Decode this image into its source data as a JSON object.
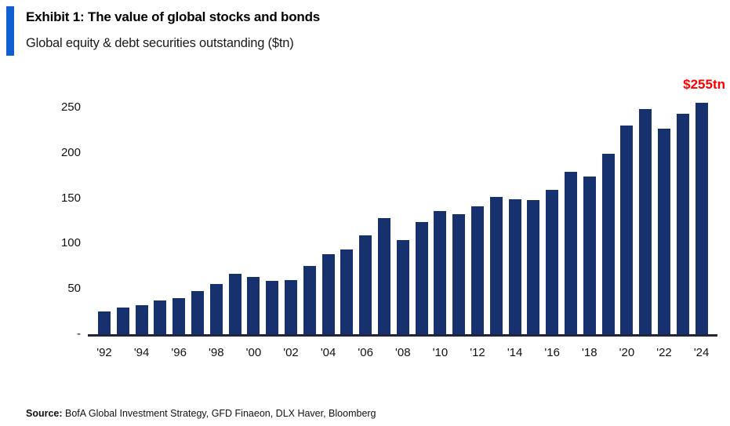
{
  "chart_data": {
    "type": "bar",
    "title": "Exhibit 1: The value of global stocks and bonds",
    "subtitle": "Global equity & debt securities outstanding ($tn)",
    "categories": [
      1992,
      1993,
      1994,
      1995,
      1996,
      1997,
      1998,
      1999,
      2000,
      2001,
      2002,
      2003,
      2004,
      2005,
      2006,
      2007,
      2008,
      2009,
      2010,
      2011,
      2012,
      2013,
      2014,
      2015,
      2016,
      2017,
      2018,
      2019,
      2020,
      2021,
      2022,
      2023,
      2024
    ],
    "values": [
      25,
      29,
      32,
      37,
      40,
      48,
      55,
      67,
      63,
      59,
      60,
      75,
      88,
      93,
      109,
      128,
      104,
      124,
      136,
      132,
      141,
      151,
      149,
      148,
      159,
      179,
      174,
      199,
      230,
      248,
      227,
      243,
      255
    ],
    "y_ticks": [
      {
        "value": 250,
        "label": "250"
      },
      {
        "value": 200,
        "label": "200"
      },
      {
        "value": 150,
        "label": "150"
      },
      {
        "value": 100,
        "label": "100"
      },
      {
        "value": 50,
        "label": "50"
      },
      {
        "value": 0,
        "label": "-"
      }
    ],
    "x_tick_labels": [
      "'92",
      "'94",
      "'96",
      "'98",
      "'00",
      "'02",
      "'04",
      "'06",
      "'08",
      "'10",
      "'12",
      "'14",
      "'16",
      "'18",
      "'20",
      "'22",
      "'24"
    ],
    "ylim": [
      0,
      270
    ],
    "grid": false,
    "legend": null,
    "xlabel": "",
    "ylabel": "",
    "annotation": {
      "text": "$255tn",
      "color": "#ff0000",
      "target_year": 2024
    },
    "bar_color": "#17316e",
    "accent_color": "#1160d2",
    "axis_color": "#23233a"
  },
  "footer": {
    "source_label": "Source:",
    "source_text": " BofA Global Investment Strategy, GFD Finaeon, DLX Haver, Bloomberg"
  }
}
